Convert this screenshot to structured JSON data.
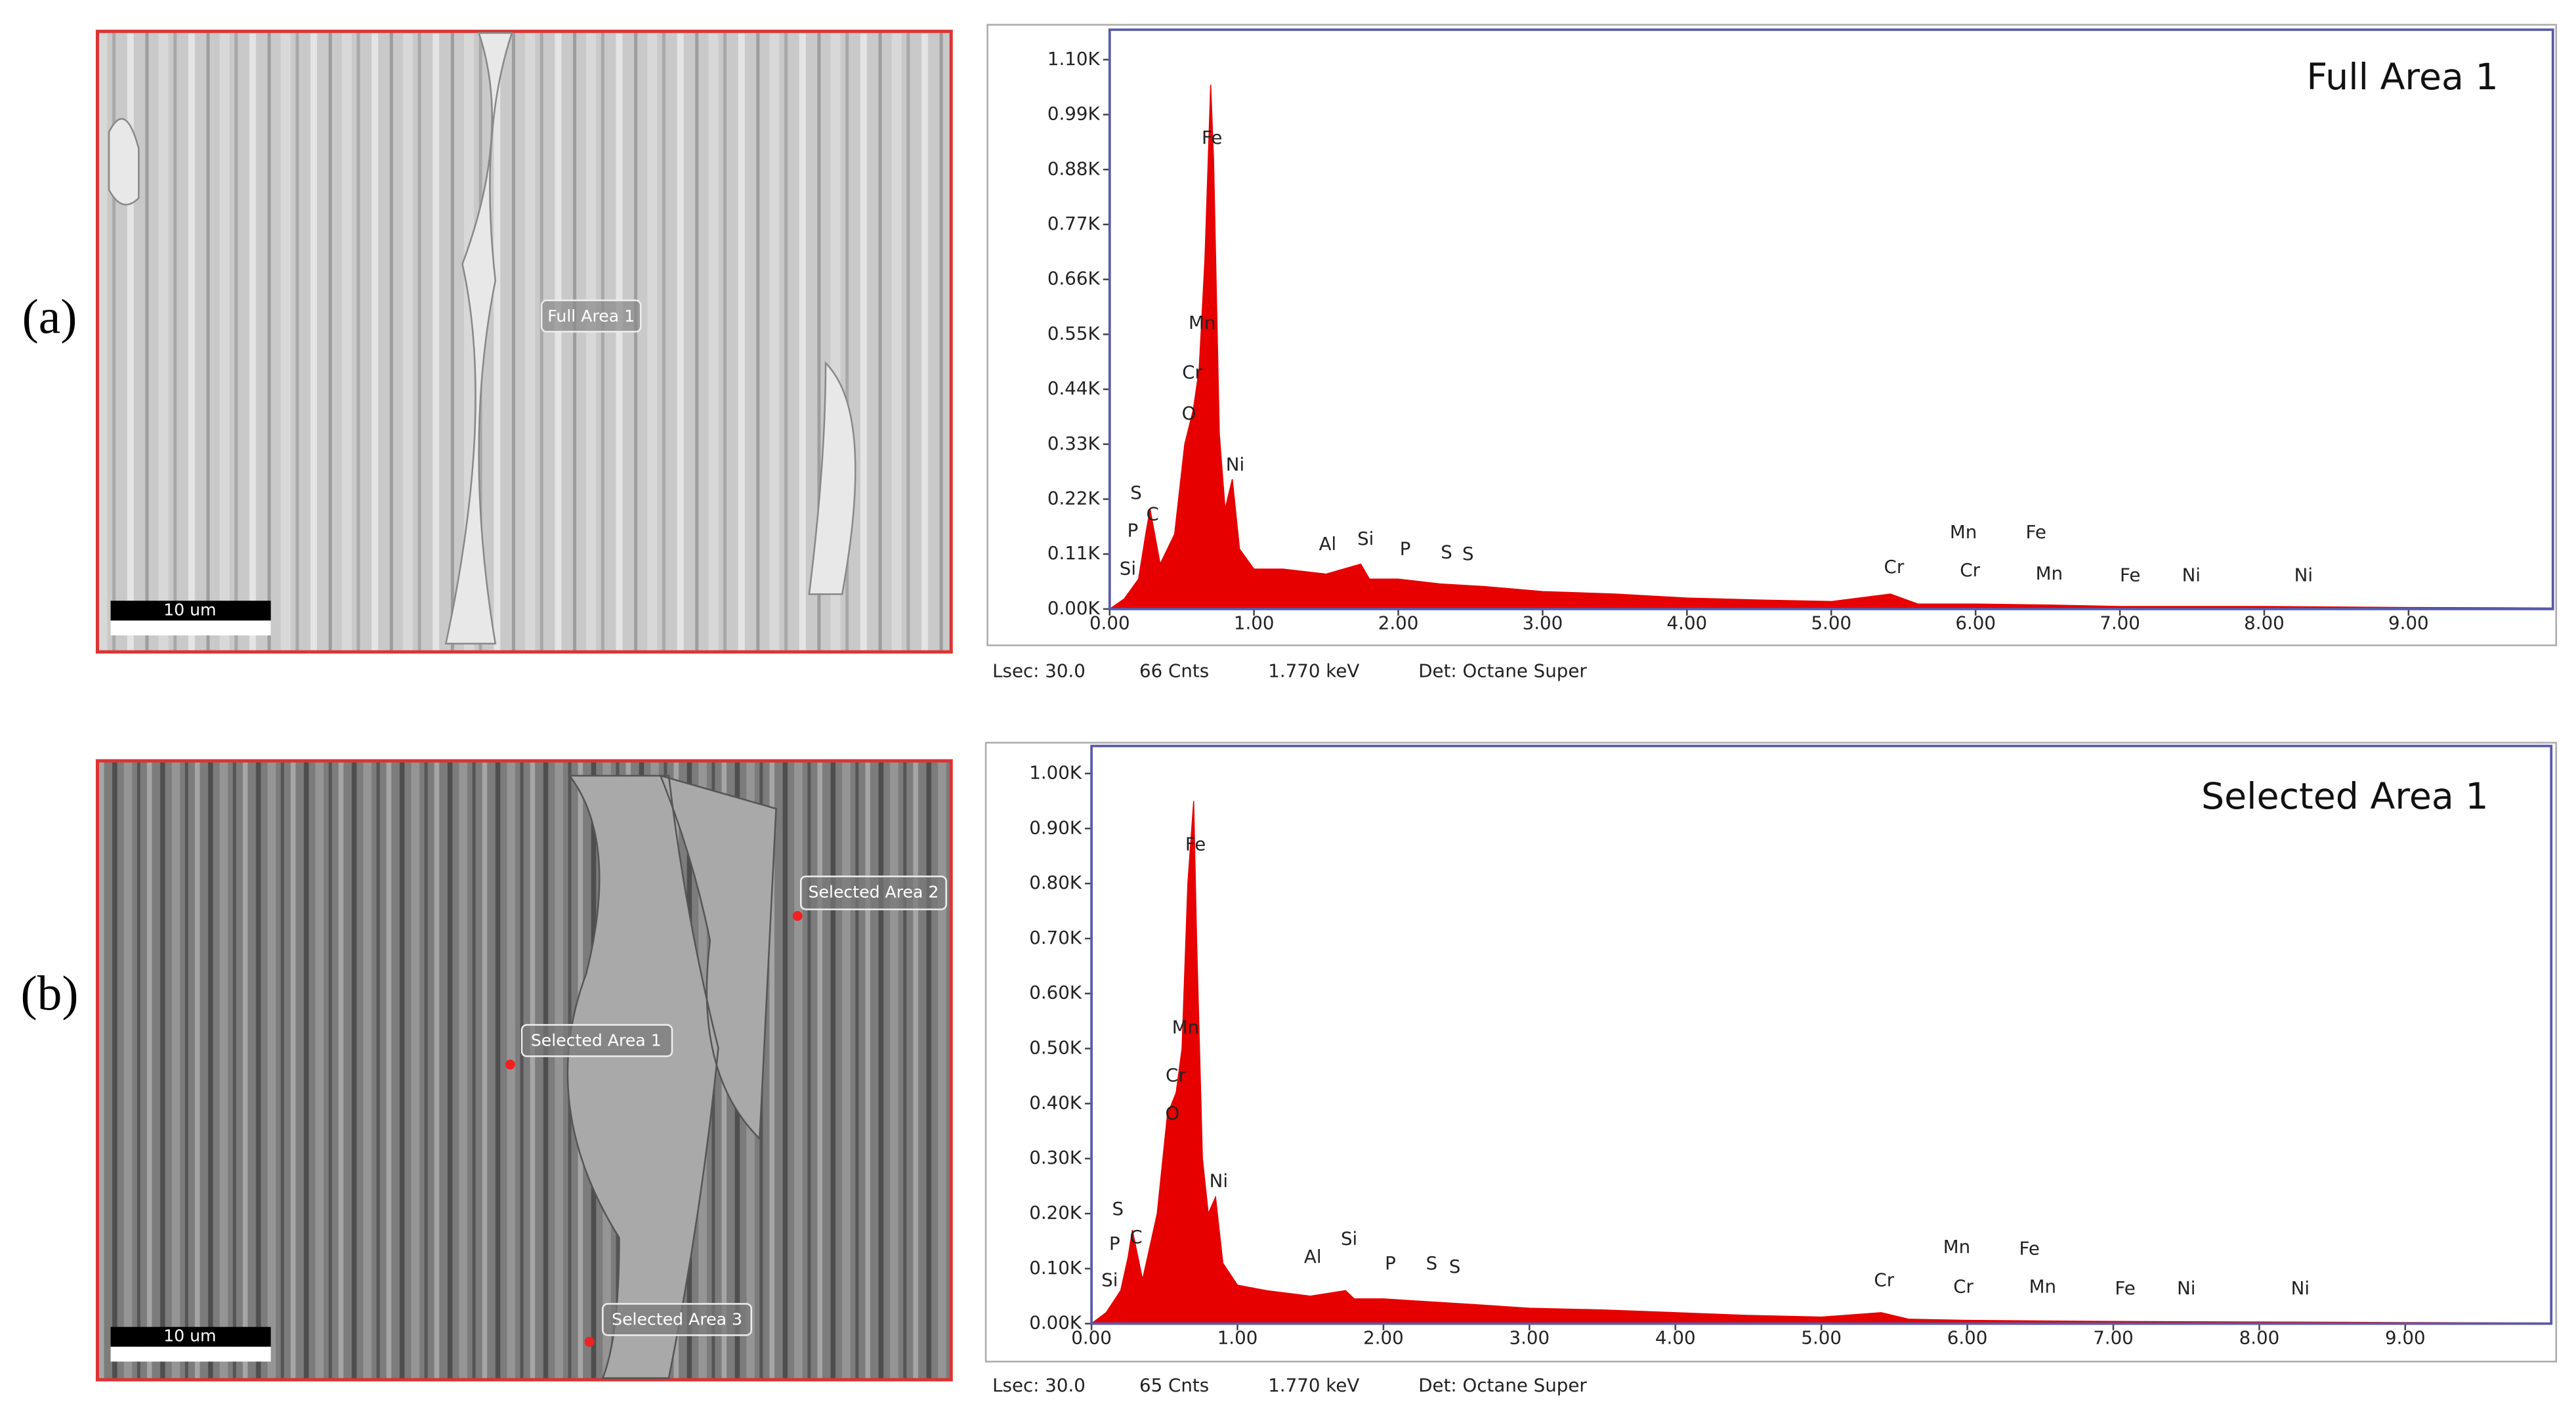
{
  "panels": [
    {
      "label": "(a)",
      "image_labels": [
        "Full Area 1"
      ],
      "scale_bar": "10 um"
    },
    {
      "label": "(b)",
      "image_labels": [
        "Selected Area 2",
        "Selected Area 1",
        "Selected Area 3"
      ],
      "scale_bar": "10 um"
    }
  ],
  "chart_data": [
    {
      "type": "area",
      "title": "Full Area 1",
      "color": "#e60000",
      "x": [
        0,
        0.1,
        0.2,
        0.25,
        0.28,
        0.35,
        0.45,
        0.52,
        0.58,
        0.62,
        0.66,
        0.7,
        0.72,
        0.76,
        0.8,
        0.85,
        0.9,
        1.0,
        1.2,
        1.5,
        1.74,
        1.8,
        2.0,
        2.3,
        2.6,
        3.0,
        3.5,
        4.0,
        4.5,
        5.0,
        5.41,
        5.6,
        6.0,
        6.5,
        7.0,
        8.0,
        9.0,
        10.0
      ],
      "values": [
        0,
        20,
        60,
        150,
        200,
        90,
        150,
        330,
        400,
        480,
        700,
        1050,
        900,
        350,
        200,
        260,
        120,
        80,
        80,
        70,
        90,
        60,
        60,
        50,
        45,
        35,
        30,
        22,
        18,
        15,
        30,
        10,
        10,
        8,
        5,
        5,
        3,
        2
      ],
      "xlim": [
        0,
        10
      ],
      "ylim": [
        0,
        1160
      ],
      "xticks": [
        {
          "value": 0,
          "label": "0.00"
        },
        {
          "value": 1,
          "label": "1.00"
        },
        {
          "value": 2,
          "label": "2.00"
        },
        {
          "value": 3,
          "label": "3.00"
        },
        {
          "value": 4,
          "label": "4.00"
        },
        {
          "value": 5,
          "label": "5.00"
        },
        {
          "value": 6,
          "label": "6.00"
        },
        {
          "value": 7,
          "label": "7.00"
        },
        {
          "value": 8,
          "label": "8.00"
        },
        {
          "value": 9,
          "label": "9.00"
        }
      ],
      "yticks": [
        {
          "value": 0,
          "label": "0.00K"
        },
        {
          "value": 110,
          "label": "0.11K"
        },
        {
          "value": 220,
          "label": "0.22K"
        },
        {
          "value": 330,
          "label": "0.33K"
        },
        {
          "value": 440,
          "label": "0.44K"
        },
        {
          "value": 550,
          "label": "0.55K"
        },
        {
          "value": 660,
          "label": "0.66K"
        },
        {
          "value": 770,
          "label": "0.77K"
        },
        {
          "value": 880,
          "label": "0.88K"
        },
        {
          "value": 990,
          "label": "0.99K"
        },
        {
          "value": 1100,
          "label": "1.10K"
        }
      ],
      "annotations": [
        "Fe",
        "Mn",
        "Cr",
        "O",
        "Ni",
        "S",
        "C",
        "P",
        "Si",
        "Al",
        "Si",
        "P",
        "S",
        "S",
        "Cr",
        "Mn",
        "Fe",
        "Cr",
        "Mn",
        "Fe",
        "Ni",
        "Ni"
      ],
      "footer": [
        "Lsec: 30.0",
        "66 Cnts",
        "1.770 keV",
        "Det: Octane Super"
      ]
    },
    {
      "type": "area",
      "title": "Selected Area 1",
      "color": "#e60000",
      "x": [
        0,
        0.1,
        0.2,
        0.25,
        0.28,
        0.35,
        0.45,
        0.52,
        0.58,
        0.62,
        0.66,
        0.7,
        0.72,
        0.76,
        0.8,
        0.85,
        0.9,
        1.0,
        1.2,
        1.5,
        1.74,
        1.8,
        2.0,
        2.3,
        2.6,
        3.0,
        3.5,
        4.0,
        4.5,
        5.0,
        5.41,
        5.6,
        6.0,
        6.5,
        7.0,
        8.0,
        9.0,
        10.0
      ],
      "values": [
        0,
        20,
        60,
        120,
        170,
        80,
        200,
        380,
        420,
        500,
        800,
        950,
        700,
        300,
        200,
        230,
        110,
        70,
        60,
        50,
        60,
        45,
        45,
        40,
        35,
        28,
        25,
        20,
        15,
        12,
        20,
        8,
        6,
        5,
        4,
        3,
        2,
        1
      ],
      "xlim": [
        0,
        10
      ],
      "ylim": [
        0,
        1050
      ],
      "xticks": [
        {
          "value": 0,
          "label": "0.00"
        },
        {
          "value": 1,
          "label": "1.00"
        },
        {
          "value": 2,
          "label": "2.00"
        },
        {
          "value": 3,
          "label": "3.00"
        },
        {
          "value": 4,
          "label": "4.00"
        },
        {
          "value": 5,
          "label": "5.00"
        },
        {
          "value": 6,
          "label": "6.00"
        },
        {
          "value": 7,
          "label": "7.00"
        },
        {
          "value": 8,
          "label": "8.00"
        },
        {
          "value": 9,
          "label": "9.00"
        }
      ],
      "yticks": [
        {
          "value": 0,
          "label": "0.00K"
        },
        {
          "value": 100,
          "label": "0.10K"
        },
        {
          "value": 200,
          "label": "0.20K"
        },
        {
          "value": 300,
          "label": "0.30K"
        },
        {
          "value": 400,
          "label": "0.40K"
        },
        {
          "value": 500,
          "label": "0.50K"
        },
        {
          "value": 600,
          "label": "0.60K"
        },
        {
          "value": 700,
          "label": "0.70K"
        },
        {
          "value": 800,
          "label": "0.80K"
        },
        {
          "value": 900,
          "label": "0.90K"
        },
        {
          "value": 1000,
          "label": "1.00K"
        }
      ],
      "annotations": [
        "Fe",
        "Mn",
        "Cr",
        "O",
        "Ni",
        "S",
        "C",
        "P",
        "Si",
        "Al",
        "Si",
        "P",
        "S",
        "S",
        "Cr",
        "Mn",
        "Fe",
        "Cr",
        "Mn",
        "Fe",
        "Ni",
        "Ni"
      ],
      "footer": [
        "Lsec: 30.0",
        "65 Cnts",
        "1.770 keV",
        "Det: Octane Super"
      ]
    }
  ]
}
